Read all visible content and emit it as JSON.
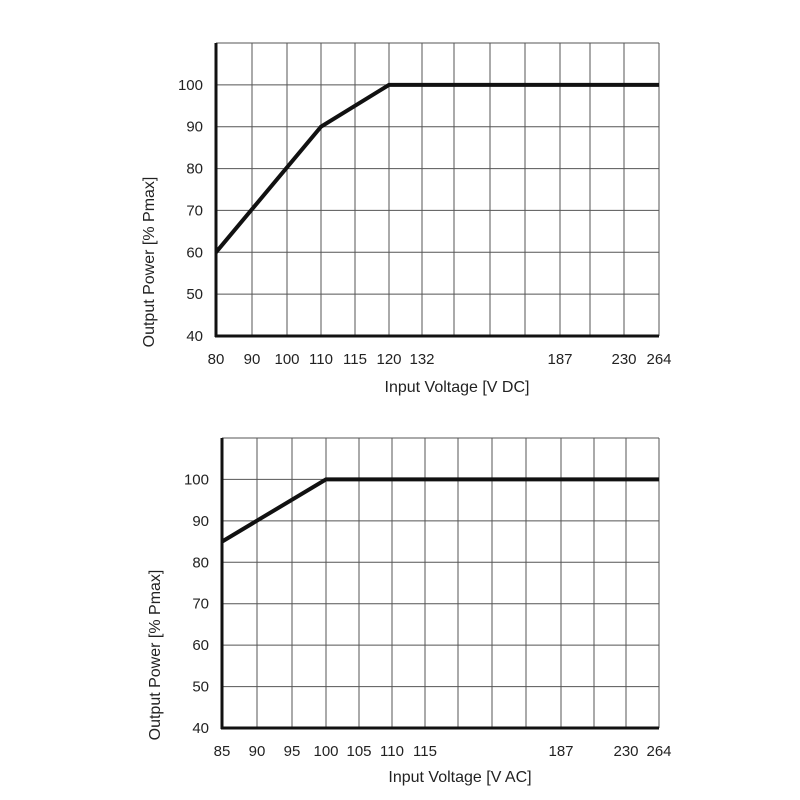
{
  "chart_data": [
    {
      "type": "line",
      "xlabel": "Input Voltage [V DC]",
      "ylabel": "Output Power [% Pmax]",
      "x_tick_labels": [
        "80",
        "90",
        "100",
        "110",
        "115",
        "120",
        "132",
        "187",
        "230",
        "264"
      ],
      "y_ticks": [
        40,
        50,
        60,
        70,
        80,
        90,
        100
      ],
      "ylim": [
        40,
        110
      ],
      "grid": true,
      "series": [
        {
          "x": [
            80,
            110,
            120,
            264
          ],
          "y": [
            60,
            90,
            100,
            100
          ]
        }
      ]
    },
    {
      "type": "line",
      "xlabel": "Input Voltage [V AC]",
      "ylabel": "Output Power [% Pmax]",
      "x_tick_labels": [
        "85",
        "90",
        "95",
        "100",
        "105",
        "110",
        "115",
        "187",
        "230",
        "264"
      ],
      "y_ticks": [
        40,
        50,
        60,
        70,
        80,
        90,
        100
      ],
      "ylim": [
        40,
        110
      ],
      "grid": true,
      "series": [
        {
          "x": [
            85,
            100,
            264
          ],
          "y": [
            85,
            100,
            100
          ]
        }
      ]
    }
  ],
  "colors": {
    "line": "#111111",
    "grid": "#555555",
    "axis": "#111111"
  }
}
